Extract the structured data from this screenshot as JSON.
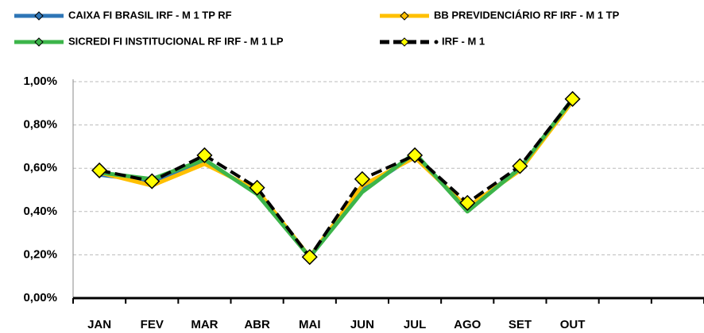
{
  "chart_data": {
    "type": "line",
    "categories": [
      "JAN",
      "FEV",
      "MAR",
      "ABR",
      "MAI",
      "JUN",
      "JUL",
      "AGO",
      "SET",
      "OUT",
      null,
      null
    ],
    "series": [
      {
        "name": "CAIXA FI BRASIL IRF - M 1 TP RF",
        "color": "#2e75b6",
        "values": [
          0.57,
          0.54,
          0.63,
          0.49,
          0.19,
          0.5,
          0.66,
          0.41,
          0.6,
          0.92,
          null,
          null
        ]
      },
      {
        "name": "BB PREVIDENCIÁRIO RF IRF - M 1 TP",
        "color": "#ffc000",
        "values": [
          0.58,
          0.52,
          0.62,
          0.5,
          0.19,
          0.52,
          0.65,
          0.42,
          0.59,
          0.91,
          null,
          null
        ]
      },
      {
        "name": "SICREDI FI INSTITUCIONAL RF IRF - M 1 LP",
        "color": "#3cb54a",
        "values": [
          0.58,
          0.55,
          0.64,
          0.48,
          0.19,
          0.49,
          0.67,
          0.4,
          0.6,
          0.92,
          null,
          null
        ]
      },
      {
        "name": "IRF - M 1",
        "color": "#000000",
        "dashed": true,
        "marker_color": "#ffff00",
        "values": [
          0.59,
          0.54,
          0.66,
          0.51,
          0.19,
          0.55,
          0.66,
          0.44,
          0.61,
          0.92,
          null,
          null
        ]
      }
    ],
    "ylim": [
      0,
      1
    ],
    "yticks": [
      {
        "value": 0,
        "label": "0,00%"
      },
      {
        "value": 0.2,
        "label": "0,20%"
      },
      {
        "value": 0.4,
        "label": "0,40%"
      },
      {
        "value": 0.6,
        "label": "0,60%"
      },
      {
        "value": 0.8,
        "label": "0,80%"
      },
      {
        "value": 1,
        "label": "1,00%"
      }
    ],
    "grid": true,
    "legend": "top"
  }
}
